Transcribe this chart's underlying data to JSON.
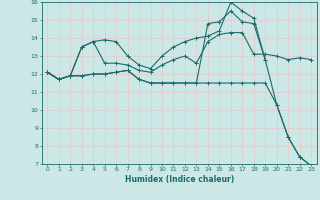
{
  "xlabel": "Humidex (Indice chaleur)",
  "xlim": [
    -0.5,
    23.5
  ],
  "ylim": [
    7,
    16
  ],
  "yticks": [
    7,
    8,
    9,
    10,
    11,
    12,
    13,
    14,
    15,
    16
  ],
  "xticks": [
    0,
    1,
    2,
    3,
    4,
    5,
    6,
    7,
    8,
    9,
    10,
    11,
    12,
    13,
    14,
    15,
    16,
    17,
    18,
    19,
    20,
    21,
    22,
    23
  ],
  "bg_color": "#cce8e6",
  "line_color": "#1a6b6b",
  "grid_color": "#b0d4d0",
  "series": [
    {
      "x": [
        0,
        1,
        2,
        3,
        4,
        5,
        6,
        7,
        8,
        9,
        10,
        11,
        12,
        13,
        14,
        15,
        16,
        17,
        18,
        19,
        20,
        21,
        22,
        23
      ],
      "y": [
        12.1,
        11.7,
        11.9,
        13.5,
        13.8,
        13.9,
        13.8,
        13.0,
        12.5,
        12.3,
        13.0,
        13.5,
        13.8,
        14.0,
        14.1,
        14.4,
        16.0,
        15.5,
        15.1,
        12.8,
        null,
        null,
        null,
        null
      ]
    },
    {
      "x": [
        0,
        1,
        2,
        3,
        4,
        5,
        6,
        7,
        8,
        9,
        10,
        11,
        12,
        13,
        14,
        15,
        16,
        17,
        18,
        19,
        20,
        21,
        22,
        23
      ],
      "y": [
        12.1,
        11.7,
        11.9,
        13.5,
        13.8,
        12.6,
        12.6,
        12.5,
        12.2,
        12.1,
        12.5,
        12.8,
        13.0,
        12.6,
        13.8,
        14.2,
        14.3,
        14.3,
        13.1,
        13.1,
        13.0,
        12.8,
        12.9,
        12.8
      ]
    },
    {
      "x": [
        0,
        1,
        2,
        3,
        4,
        5,
        6,
        7,
        8,
        9,
        10,
        11,
        12,
        13,
        14,
        15,
        16,
        17,
        18,
        19,
        20,
        21,
        22,
        23
      ],
      "y": [
        12.1,
        11.7,
        11.9,
        11.9,
        12.0,
        12.0,
        12.1,
        12.2,
        11.7,
        11.5,
        11.5,
        11.5,
        11.5,
        11.5,
        11.5,
        11.5,
        11.5,
        11.5,
        11.5,
        11.5,
        10.3,
        8.5,
        7.4,
        6.9
      ]
    },
    {
      "x": [
        0,
        1,
        2,
        3,
        4,
        5,
        6,
        7,
        8,
        9,
        10,
        11,
        12,
        13,
        14,
        15,
        16,
        17,
        18,
        19,
        20,
        21,
        22,
        23
      ],
      "y": [
        12.1,
        11.7,
        11.9,
        11.9,
        12.0,
        12.0,
        12.1,
        12.2,
        11.7,
        11.5,
        11.5,
        11.5,
        11.5,
        11.5,
        14.8,
        14.9,
        15.5,
        14.9,
        14.8,
        12.8,
        10.3,
        8.5,
        7.4,
        6.9
      ]
    }
  ]
}
